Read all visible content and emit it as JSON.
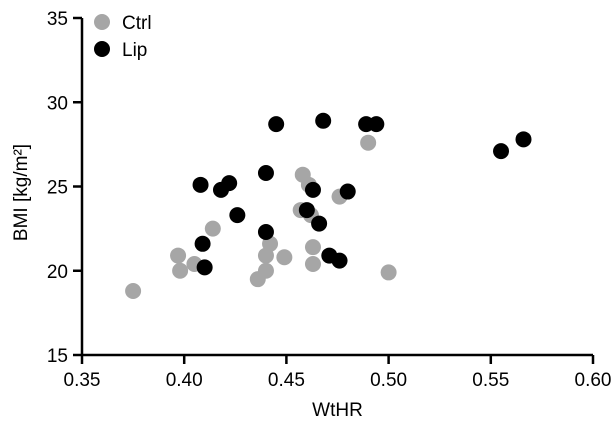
{
  "chart_data": {
    "type": "scatter",
    "xlabel": "WtHR",
    "ylabel": "BMI [kg/m²]",
    "xlim": [
      0.35,
      0.6
    ],
    "ylim": [
      15,
      35
    ],
    "xticks": [
      0.35,
      0.4,
      0.45,
      0.5,
      0.55,
      0.6
    ],
    "xtick_labels": [
      "0.35",
      "0.40",
      "0.45",
      "0.50",
      "0.55",
      "0.60"
    ],
    "yticks": [
      15,
      20,
      25,
      30,
      35
    ],
    "ytick_labels": [
      "15",
      "20",
      "25",
      "30",
      "35"
    ],
    "grid": false,
    "legend_position": "top-left",
    "series": [
      {
        "name": "Ctrl",
        "color": "#a6a6a6",
        "points": [
          [
            0.375,
            18.8
          ],
          [
            0.397,
            20.9
          ],
          [
            0.398,
            20.0
          ],
          [
            0.405,
            20.4
          ],
          [
            0.414,
            22.5
          ],
          [
            0.436,
            19.5
          ],
          [
            0.44,
            20.0
          ],
          [
            0.44,
            20.9
          ],
          [
            0.442,
            21.6
          ],
          [
            0.449,
            20.8
          ],
          [
            0.457,
            23.6
          ],
          [
            0.458,
            25.7
          ],
          [
            0.461,
            25.1
          ],
          [
            0.462,
            23.3
          ],
          [
            0.463,
            21.4
          ],
          [
            0.463,
            20.4
          ],
          [
            0.476,
            24.4
          ],
          [
            0.49,
            27.6
          ],
          [
            0.5,
            19.9
          ]
        ]
      },
      {
        "name": "Lip",
        "color": "#000000",
        "points": [
          [
            0.408,
            25.1
          ],
          [
            0.409,
            21.6
          ],
          [
            0.41,
            20.2
          ],
          [
            0.418,
            24.8
          ],
          [
            0.422,
            25.2
          ],
          [
            0.426,
            23.3
          ],
          [
            0.44,
            25.8
          ],
          [
            0.44,
            22.3
          ],
          [
            0.445,
            28.7
          ],
          [
            0.46,
            23.6
          ],
          [
            0.463,
            24.8
          ],
          [
            0.466,
            22.8
          ],
          [
            0.468,
            28.9
          ],
          [
            0.471,
            20.9
          ],
          [
            0.476,
            20.6
          ],
          [
            0.48,
            24.7
          ],
          [
            0.489,
            28.7
          ],
          [
            0.494,
            28.7
          ],
          [
            0.555,
            27.1
          ],
          [
            0.566,
            27.8
          ]
        ]
      }
    ]
  }
}
